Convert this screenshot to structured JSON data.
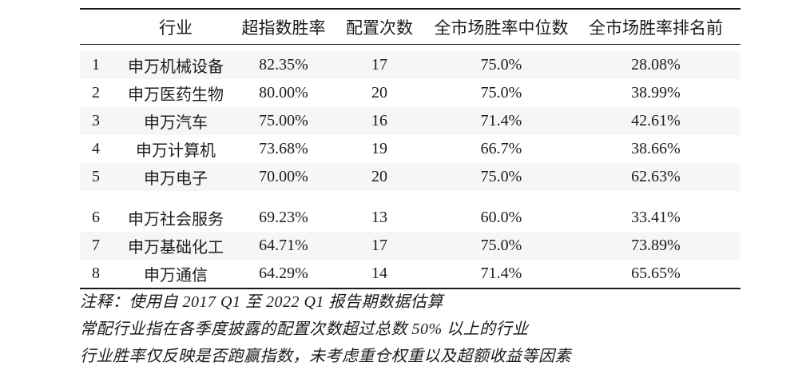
{
  "table": {
    "columns": [
      "",
      "行业",
      "超指数胜率",
      "配置次数",
      "全市场胜率中位数",
      "全市场胜率排名前"
    ],
    "rows": [
      [
        "1",
        "申万机械设备",
        "82.35%",
        "17",
        "75.0%",
        "28.08%"
      ],
      [
        "2",
        "申万医药生物",
        "80.00%",
        "20",
        "75.0%",
        "38.99%"
      ],
      [
        "3",
        "申万汽车",
        "75.00%",
        "16",
        "71.4%",
        "42.61%"
      ],
      [
        "4",
        "申万计算机",
        "73.68%",
        "19",
        "66.7%",
        "38.66%"
      ],
      [
        "5",
        "申万电子",
        "70.00%",
        "20",
        "75.0%",
        "62.63%"
      ],
      [
        "6",
        "申万社会服务",
        "69.23%",
        "13",
        "60.0%",
        "33.41%"
      ],
      [
        "7",
        "申万基础化工",
        "64.71%",
        "17",
        "75.0%",
        "73.89%"
      ],
      [
        "8",
        "申万通信",
        "64.29%",
        "14",
        "71.4%",
        "65.65%"
      ]
    ],
    "group_break_after_row": 5,
    "stripe_color": "#f6f6f6",
    "rule_color": "#1a1a1a"
  },
  "notes": [
    "注释：使用自 2017 Q1 至 2022 Q1 报告期数据估算",
    "常配行业指在各季度披露的配置次数超过总数 50% 以上的行业",
    "行业胜率仅反映是否跑赢指数，未考虑重仓权重以及超额收益等因素"
  ]
}
